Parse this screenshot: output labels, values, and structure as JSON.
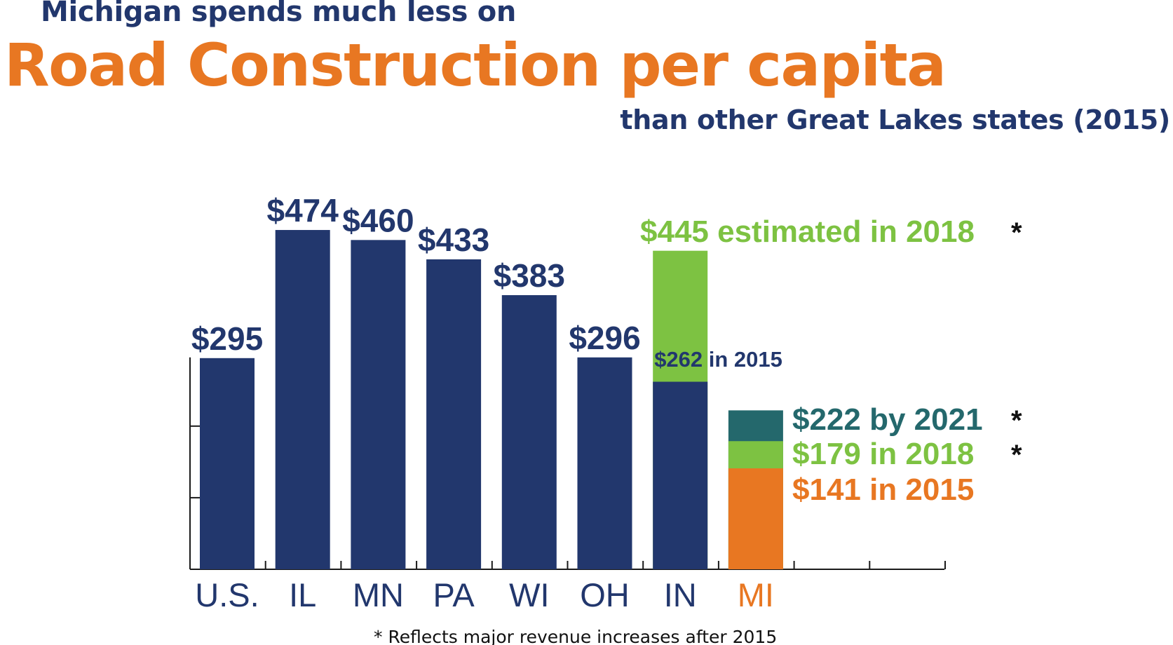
{
  "header": {
    "title_top": "Michigan spends much less on",
    "title_main": "Road Construction per capita",
    "title_sub": "than other Great Lakes states (2015)"
  },
  "colors": {
    "navy": "#22376d",
    "orange": "#e87722",
    "green": "#7dc242",
    "teal": "#24686c",
    "axis": "#1a1a1a"
  },
  "chart_data": {
    "type": "bar",
    "title": "Michigan spends much less on Road Construction per capita than other Great Lakes states (2015)",
    "xlabel": "",
    "ylabel": "",
    "ylim": [
      0,
      296
    ],
    "y_ticks": [
      100,
      200
    ],
    "grid": false,
    "categories": [
      "U.S.",
      "IL",
      "MN",
      "PA",
      "WI",
      "OH",
      "IN",
      "MI"
    ],
    "values_2015": [
      295,
      474,
      460,
      433,
      383,
      296,
      262,
      141
    ],
    "value_labels": [
      "$295",
      "$474",
      "$460",
      "$433",
      "$383",
      "$296",
      null,
      null
    ],
    "stacked_extensions": {
      "IN": [
        {
          "year": 2015,
          "value": 262,
          "label": "$262",
          "label_suffix": " in 2015",
          "color_key": "navy"
        },
        {
          "year": 2018,
          "value": 445,
          "label": "$445 estimated in 2018",
          "asterisk": "*",
          "color_key": "green"
        }
      ],
      "MI": [
        {
          "year": 2015,
          "value": 141,
          "label": "$141 in 2015",
          "asterisk": "",
          "color_key": "orange"
        },
        {
          "year": 2018,
          "value": 179,
          "label": "$179 in 2018",
          "asterisk": "*",
          "color_key": "green"
        },
        {
          "year": 2021,
          "value": 222,
          "label": "$222 by 2021",
          "asterisk": "*",
          "color_key": "teal"
        }
      ]
    },
    "highlight_category": "MI",
    "footnote": "* Reflects major revenue increases after 2015"
  }
}
